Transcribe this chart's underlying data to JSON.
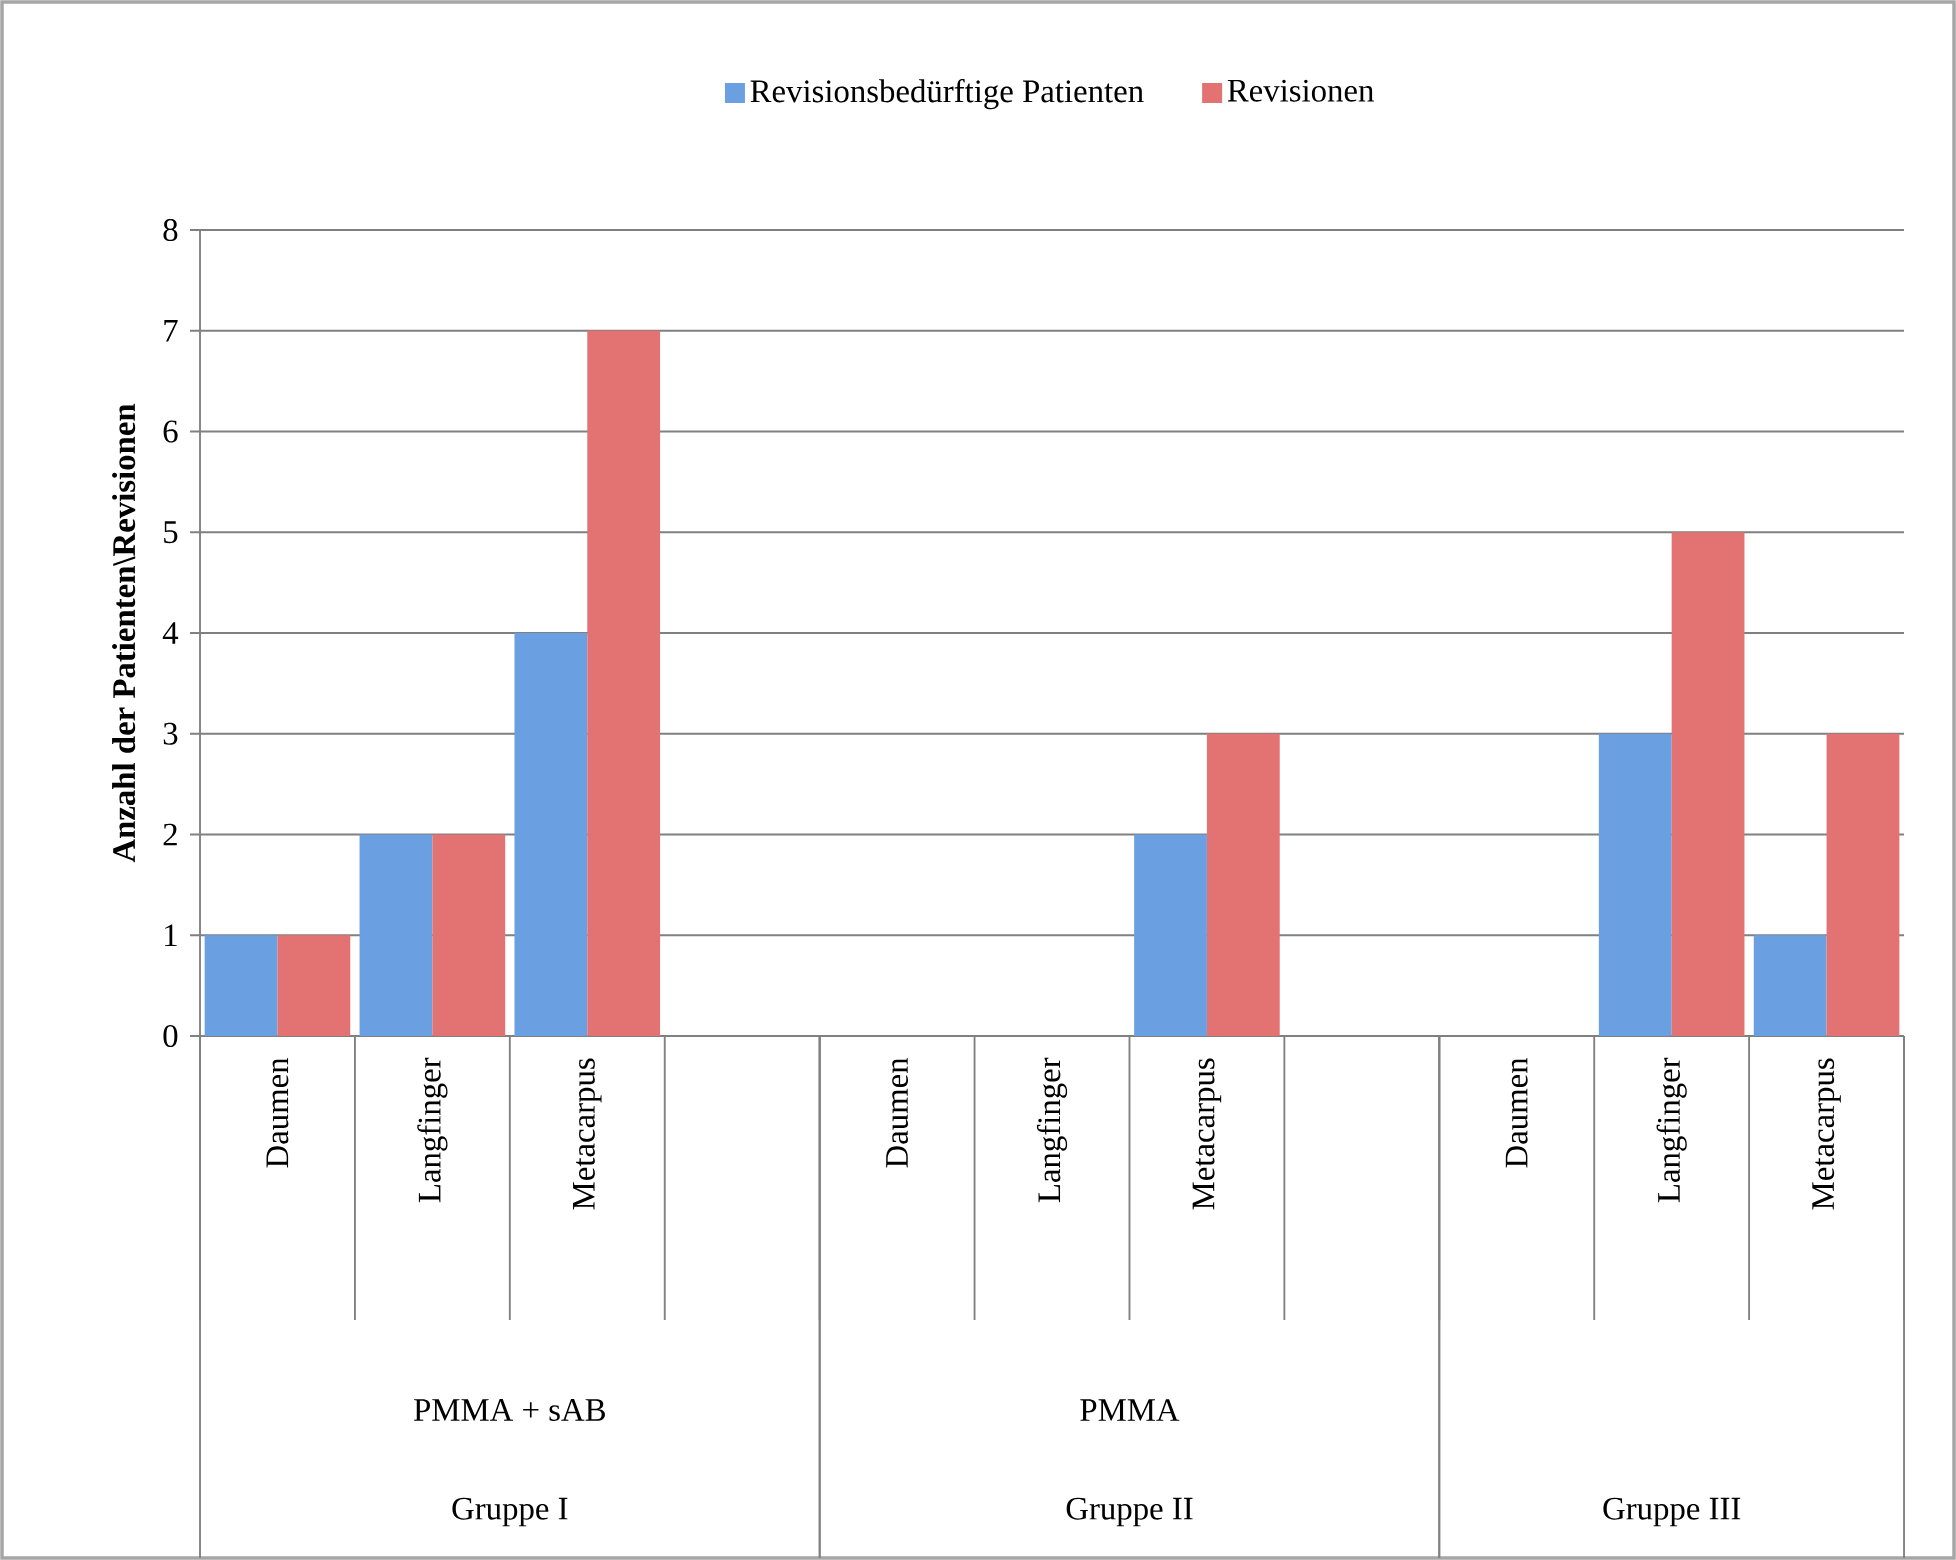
{
  "chart_data": {
    "type": "bar",
    "categories": [
      "Daumen",
      "Langfinger",
      "Metacarpus",
      null,
      "Daumen",
      "Langfinger",
      "Metacarpus",
      null,
      "Daumen",
      "Langfinger",
      "Metacarpus"
    ],
    "series": [
      {
        "name": "Revisionsbedürftige Patienten",
        "color": "#6a9fe2",
        "values": [
          1,
          2,
          4,
          null,
          0,
          0,
          2,
          null,
          0,
          3,
          1
        ]
      },
      {
        "name": "Revisionen",
        "color": "#e37372",
        "values": [
          1,
          2,
          7,
          null,
          0,
          0,
          3,
          null,
          0,
          5,
          3
        ]
      }
    ],
    "ylabel": "Anzahl der Patienten\\Revisionen",
    "ylim": [
      0,
      8
    ],
    "yticks": [
      0,
      1,
      2,
      3,
      4,
      5,
      6,
      7,
      8
    ],
    "grid": "y",
    "legend": "top",
    "annotations": [
      "PMMA + sAB",
      "PMMA",
      "Gruppe I",
      "Gruppe II",
      "Gruppe III"
    ]
  }
}
